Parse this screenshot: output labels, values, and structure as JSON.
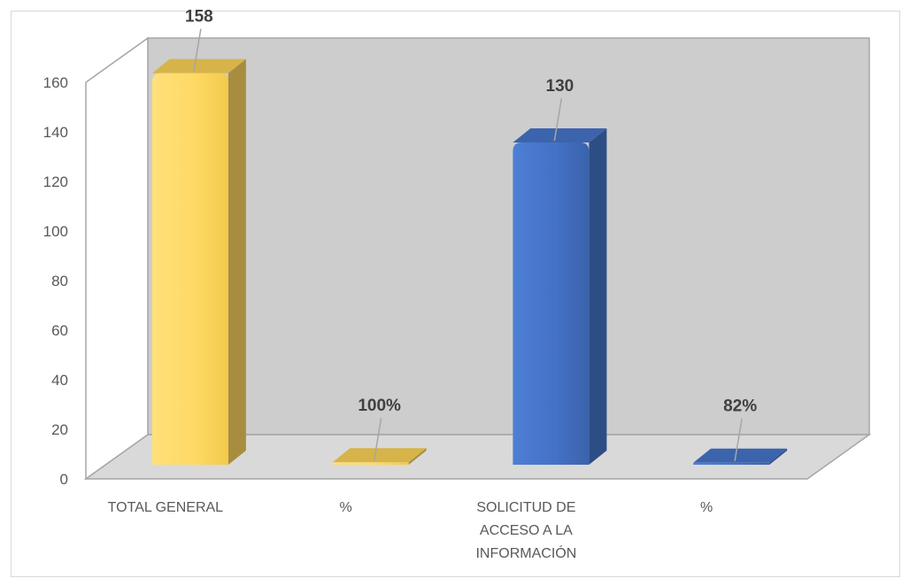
{
  "chart_data": {
    "type": "bar",
    "categories": [
      [
        "TOTAL GENERAL"
      ],
      [
        "%"
      ],
      [
        "SOLICITUD DE",
        "ACCESO A LA",
        "INFORMACIÓN"
      ],
      [
        "%"
      ]
    ],
    "values": [
      158,
      1,
      130,
      0.82
    ],
    "data_labels": [
      "158",
      "100%",
      "130",
      "82%"
    ],
    "colors": [
      "#ffd966",
      "#ffd966",
      "#4472c4",
      "#4472c4"
    ],
    "title": "",
    "xlabel": "",
    "ylabel": "",
    "ylim": [
      0,
      160
    ],
    "yticks": [
      "0",
      "20",
      "40",
      "60",
      "80",
      "100",
      "120",
      "140",
      "160"
    ],
    "style": "3d-column",
    "grid": false,
    "legend": "none"
  }
}
